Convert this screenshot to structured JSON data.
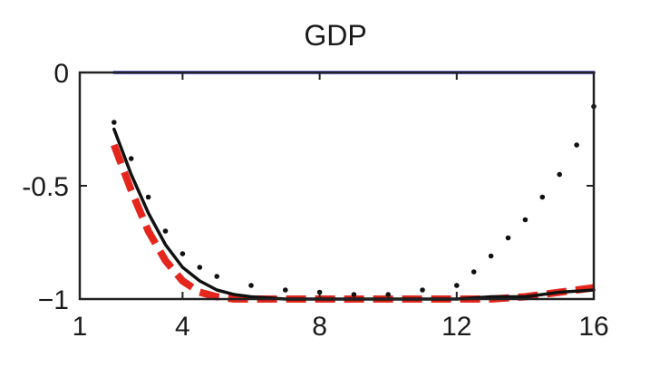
{
  "chart_data": {
    "type": "line",
    "title": "GDP",
    "xlabel": "",
    "ylabel": "",
    "xlim": [
      1,
      16
    ],
    "ylim": [
      -1,
      0
    ],
    "xticks": [
      1,
      4,
      8,
      12,
      16
    ],
    "yticks": [
      0,
      -0.5,
      -1
    ],
    "ytick_labels": [
      "0",
      "-0.5",
      "−1"
    ],
    "grid": false,
    "legend": "none",
    "series": [
      {
        "style": "solid",
        "color": "#2b2bd0",
        "x": [
          2,
          16
        ],
        "y": [
          0,
          0
        ]
      },
      {
        "style": "dashed",
        "color": "#e4261d",
        "x": [
          2,
          2.5,
          3,
          3.5,
          4,
          4.5,
          5,
          5.5,
          6,
          7,
          8,
          9,
          10,
          11,
          12,
          13,
          14,
          15,
          16
        ],
        "y": [
          -0.32,
          -0.52,
          -0.7,
          -0.83,
          -0.92,
          -0.97,
          -0.99,
          -1.0,
          -1.0,
          -1.0,
          -1.0,
          -1.0,
          -1.0,
          -1.0,
          -1.0,
          -1.0,
          -0.99,
          -0.97,
          -0.95
        ]
      },
      {
        "style": "solid",
        "color": "#111111",
        "x": [
          2,
          2.5,
          3,
          3.5,
          4,
          4.5,
          5,
          5.5,
          6,
          7,
          8,
          9,
          10,
          11,
          12,
          13,
          14,
          15,
          16
        ],
        "y": [
          -0.25,
          -0.45,
          -0.62,
          -0.76,
          -0.86,
          -0.92,
          -0.96,
          -0.98,
          -0.99,
          -1.0,
          -1.0,
          -1.0,
          -1.0,
          -1.0,
          -1.0,
          -0.99,
          -0.99,
          -0.97,
          -0.96
        ]
      },
      {
        "style": "dotted",
        "color": "#111111",
        "x": [
          2,
          2.5,
          3,
          3.5,
          4,
          4.5,
          5,
          6,
          7,
          8,
          9,
          10,
          11,
          12,
          12.5,
          13,
          13.5,
          14,
          14.5,
          15,
          15.5,
          16
        ],
        "y": [
          -0.22,
          -0.38,
          -0.55,
          -0.7,
          -0.8,
          -0.86,
          -0.9,
          -0.94,
          -0.96,
          -0.97,
          -0.98,
          -0.98,
          -0.96,
          -0.94,
          -0.88,
          -0.81,
          -0.73,
          -0.65,
          -0.55,
          -0.45,
          -0.32,
          -0.15
        ]
      }
    ]
  }
}
